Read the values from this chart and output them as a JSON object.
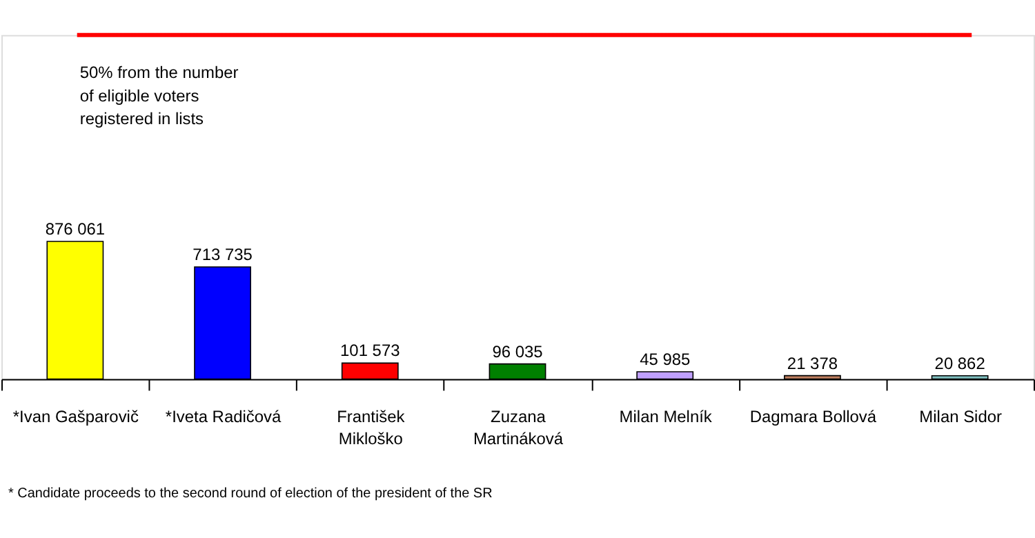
{
  "chart_data": {
    "type": "bar",
    "categories": [
      "*Ivan Gašparovič",
      "*Iveta Radičová",
      "František Mikloško",
      "Zuzana Martináková",
      "Milan Melník",
      "Dagmara Bollová",
      "Milan Sidor"
    ],
    "values": [
      876061,
      713735,
      101573,
      96035,
      45985,
      21378,
      20862
    ],
    "colors": [
      "#ffff00",
      "#0000ff",
      "#ff0000",
      "#008000",
      "#c0a0ff",
      "#c08060",
      "#80c0c0"
    ],
    "value_labels": [
      "876 061",
      "713 735",
      "101 573",
      "96 035",
      "45 985",
      "21 378",
      "20 862"
    ],
    "ref_lines": [
      {
        "axis": "y",
        "value": 2190000,
        "label": "50% from the number of eligible voters registered in lists",
        "color": "#ff0000"
      }
    ],
    "annotations": [
      "* Candidate proceeds to the second round of election of the president of the SR"
    ],
    "grid": false
  }
}
